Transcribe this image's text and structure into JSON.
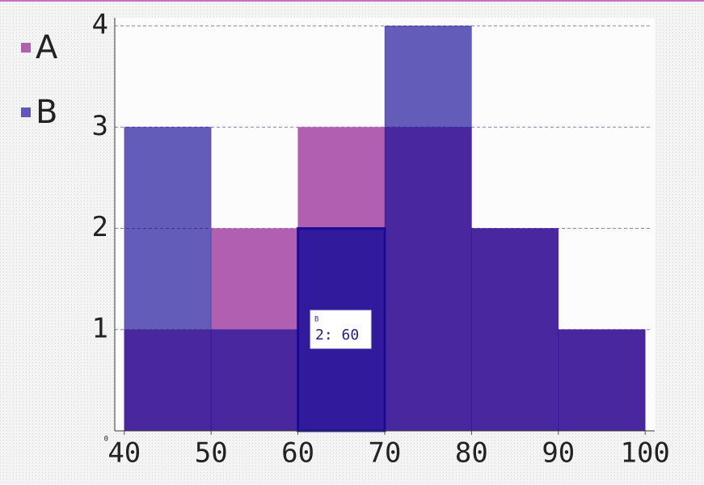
{
  "chart_data": {
    "type": "histogram",
    "bins": [
      40,
      50,
      60,
      70,
      80,
      90,
      100
    ],
    "series": [
      {
        "name": "A",
        "color": "#b15fb0",
        "opacity": 1,
        "values": [
          1,
          2,
          3,
          3,
          2,
          1
        ]
      },
      {
        "name": "B",
        "color": "#140a96",
        "opacity": 0.66,
        "values": [
          3,
          1,
          2,
          4,
          2,
          1
        ]
      }
    ],
    "xlim": [
      38.9,
      101.1
    ],
    "xticks": [
      40,
      50,
      60,
      70,
      80,
      90,
      100
    ],
    "ylim": [
      0,
      4.08
    ],
    "yticks": [
      0,
      1,
      2,
      3,
      4
    ],
    "grid": true,
    "legend": "left",
    "tooltip": {
      "series": "B",
      "text": "2: 60"
    }
  }
}
